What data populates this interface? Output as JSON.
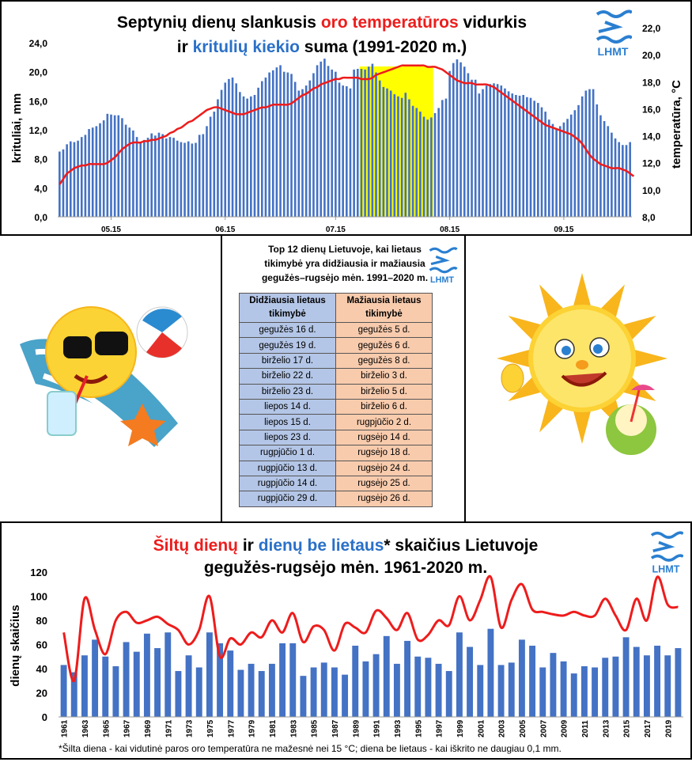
{
  "colors": {
    "red": "#ee1c1c",
    "blue": "#4472c4",
    "highlight": "#ffff00",
    "lhmt": "#2a7fd0",
    "col1": "#b4c6e7",
    "col2": "#f8cbad"
  },
  "logo_text": "LHMT",
  "top": {
    "title_l1": [
      "Septynių dienų slankusis ",
      "oro temperatūros",
      " vidurkis"
    ],
    "title_l2": [
      "ir ",
      "kritulių kiekio",
      " suma (1991-2020 m.)"
    ],
    "ylabel_left": "krituliai, mm",
    "ylabel_right": "temperatūra, °C"
  },
  "middle": {
    "title": "Top 12 dienų Lietuvoje, kai lietaus tikimybė yra didžiausia ir mažiausia gegužės–rugsėjo mėn. 1991–2020 m.",
    "title_lines": [
      "Top 12 dienų Lietuvoje, kai lietaus",
      "tikimybė yra didžiausia ir mažiausia",
      "gegužės–rugsėjo mėn. 1991–2020 m."
    ],
    "headers": [
      "Didžiausia lietaus tikimybė",
      "Mažiausia lietaus tikimybė"
    ],
    "max_days": [
      "gegužės 16 d.",
      "gegužės 19 d.",
      "birželio 17 d.",
      "birželio 22 d.",
      "birželio 23 d.",
      "liepos 14 d.",
      "liepos 15 d.",
      "liepos 23 d.",
      "rugpjūčio 1 d.",
      "rugpjūčio 13 d.",
      "rugpjūčio 14 d.",
      "rugpjūčio 29 d."
    ],
    "min_days": [
      "gegužės 5 d.",
      "gegužės 6 d.",
      "gegužės 8 d.",
      "birželio 3 d.",
      "birželio 5 d.",
      "birželio 6 d.",
      "rugpjūčio 2 d.",
      "rugsėjo 14 d.",
      "rugsėjo 18 d.",
      "rugsėjo 24 d.",
      "rugsėjo 25 d.",
      "rugsėjo 26 d."
    ]
  },
  "bottom": {
    "title_l1": [
      "Šiltų dienų",
      " ir ",
      "dienų be lietaus",
      "* skaičius Lietuvoje"
    ],
    "title_l2": "gegužės-rugsėjo mėn. 1961-2020 m.",
    "ylabel": "dienų skaičius",
    "footnote": "*Šilta diena - kai vidutinė paros oro temperatūra ne mažesnė nei 15 °C; diena be lietaus - kai iškrito ne daugiau 0,1 mm."
  },
  "chart_data": [
    {
      "type": "bar+line",
      "title": "Septynių dienų slankusis oro temperatūros vidurkis ir kritulių kiekio suma (1991-2020 m.)",
      "x_ticks": [
        "05.15",
        "06.15",
        "07.15",
        "08.15",
        "09.15"
      ],
      "x_tick_day_index": [
        14,
        45,
        75,
        106,
        137
      ],
      "left_axis": {
        "label": "krituliai, mm",
        "ylim": [
          0,
          24
        ],
        "ticks": [
          "0,0",
          "4,0",
          "8,0",
          "12,0",
          "16,0",
          "20,0",
          "24,0"
        ]
      },
      "right_axis": {
        "label": "temperatūra, °C",
        "ylim": [
          8,
          22
        ],
        "ticks": [
          "8,0",
          "10,0",
          "12,0",
          "14,0",
          "16,0",
          "18,0",
          "20,0",
          "22,0"
        ]
      },
      "highlight_days": [
        82,
        101
      ],
      "precip_mm": [
        9.0,
        9.3,
        10.0,
        10.4,
        10.3,
        10.5,
        11.0,
        11.3,
        12.1,
        12.3,
        12.5,
        12.9,
        13.3,
        14.2,
        14.1,
        14.0,
        14.0,
        13.6,
        12.7,
        12.3,
        11.9,
        11.0,
        10.2,
        10.6,
        10.9,
        11.5,
        11.2,
        11.6,
        11.4,
        10.8,
        11.0,
        10.9,
        10.5,
        10.3,
        10.2,
        10.4,
        10.1,
        10.2,
        11.3,
        11.4,
        12.5,
        13.8,
        14.5,
        16.2,
        17.5,
        18.5,
        19.0,
        19.2,
        18.4,
        17.2,
        16.6,
        16.3,
        16.6,
        16.8,
        17.8,
        18.7,
        19.2,
        19.9,
        20.2,
        20.6,
        20.9,
        20.0,
        19.9,
        19.7,
        18.6,
        17.4,
        17.6,
        18.1,
        18.8,
        19.8,
        20.9,
        21.4,
        21.8,
        20.8,
        20.3,
        20.0,
        18.5,
        18.1,
        18.0,
        17.7,
        20.3,
        20.4,
        20.4,
        20.3,
        20.7,
        21.1,
        19.9,
        18.8,
        17.9,
        17.7,
        17.4,
        16.9,
        16.6,
        16.4,
        17.1,
        16.2,
        15.3,
        15.0,
        14.5,
        13.8,
        13.4,
        13.7,
        14.3,
        15.0,
        16.1,
        16.3,
        20.1,
        21.2,
        21.7,
        21.3,
        20.7,
        19.8,
        18.9,
        18.9,
        17.0,
        17.6,
        18.1,
        18.3,
        18.4,
        18.3,
        18.1,
        17.7,
        17.3,
        17.0,
        16.8,
        16.7,
        16.8,
        16.5,
        16.4,
        16.0,
        15.7,
        15.1,
        14.5,
        13.4,
        12.8,
        12.2,
        12.5,
        13.0,
        13.5,
        14.1,
        14.7,
        15.4,
        16.6,
        17.4,
        17.6,
        17.6,
        15.5,
        14.0,
        13.2,
        12.5,
        11.6,
        10.8,
        10.3,
        9.9,
        9.9,
        10.3
      ],
      "temp_c": [
        10.4,
        10.8,
        11.2,
        11.4,
        11.6,
        11.7,
        11.8,
        11.8,
        11.9,
        11.9,
        11.9,
        11.9,
        11.9,
        12.0,
        12.2,
        12.4,
        12.7,
        13.0,
        13.2,
        13.4,
        13.5,
        13.5,
        13.5,
        13.6,
        13.6,
        13.7,
        13.7,
        13.8,
        13.9,
        14.0,
        14.2,
        14.3,
        14.5,
        14.6,
        14.8,
        15.0,
        15.1,
        15.3,
        15.5,
        15.7,
        15.9,
        16.0,
        16.1,
        16.1,
        16.0,
        15.9,
        15.8,
        15.7,
        15.6,
        15.6,
        15.6,
        15.7,
        15.8,
        15.9,
        16.0,
        16.1,
        16.1,
        16.2,
        16.3,
        16.3,
        16.3,
        16.3,
        16.3,
        16.4,
        16.6,
        16.8,
        17.0,
        17.1,
        17.3,
        17.5,
        17.6,
        17.8,
        17.9,
        18.0,
        18.1,
        18.2,
        18.2,
        18.3,
        18.3,
        18.3,
        18.3,
        18.3,
        18.2,
        18.2,
        18.2,
        18.3,
        18.5,
        18.6,
        18.7,
        18.8,
        18.9,
        19.0,
        19.1,
        19.2,
        19.2,
        19.2,
        19.2,
        19.2,
        19.2,
        19.2,
        19.1,
        19.1,
        19.1,
        19.0,
        18.9,
        18.7,
        18.5,
        18.3,
        18.1,
        18.0,
        17.9,
        17.9,
        17.9,
        17.8,
        17.8,
        17.8,
        17.8,
        17.7,
        17.6,
        17.4,
        17.2,
        17.0,
        16.8,
        16.6,
        16.4,
        16.2,
        16.0,
        15.8,
        15.6,
        15.4,
        15.2,
        15.0,
        14.8,
        14.7,
        14.6,
        14.5,
        14.4,
        14.3,
        14.2,
        14.1,
        13.9,
        13.7,
        13.4,
        13.0,
        12.6,
        12.3,
        12.1,
        11.9,
        11.8,
        11.7,
        11.6,
        11.6,
        11.6,
        11.5,
        11.4,
        11.2,
        11.0
      ]
    },
    {
      "type": "bar+line",
      "title": "Šiltų dienų ir dienų be lietaus* skaičius Lietuvoje gegužės-rugsėjo mėn. 1961-2020 m.",
      "ylabel": "dienų skaičius",
      "ylim": [
        0,
        120
      ],
      "y_ticks": [
        0,
        20,
        40,
        60,
        80,
        100,
        120
      ],
      "x_years_start": 1961,
      "x_tick_labels": [
        "1961",
        "1963",
        "1965",
        "1967",
        "1969",
        "1971",
        "1973",
        "1975",
        "1977",
        "1979",
        "1981",
        "1983",
        "1985",
        "1987",
        "1989",
        "1991",
        "1993",
        "1995",
        "1997",
        "1999",
        "2001",
        "2003",
        "2005",
        "2007",
        "2009",
        "2011",
        "2013",
        "2015",
        "2017",
        "2019"
      ],
      "series": [
        {
          "name": "dienų be lietaus",
          "type": "bar",
          "values": [
            43,
            37,
            51,
            64,
            50,
            42,
            62,
            54,
            69,
            57,
            70,
            38,
            51,
            41,
            70,
            61,
            55,
            39,
            44,
            38,
            44,
            61,
            61,
            34,
            41,
            45,
            41,
            35,
            59,
            46,
            52,
            67,
            44,
            63,
            50,
            49,
            44,
            38,
            70,
            58,
            43,
            73,
            43,
            45,
            64,
            59,
            41,
            53,
            46,
            36,
            42,
            41,
            49,
            50,
            66,
            58,
            51,
            59,
            51,
            57
          ]
        },
        {
          "name": "šiltų dienų",
          "type": "line",
          "values": [
            70,
            30,
            98,
            72,
            52,
            80,
            87,
            78,
            80,
            83,
            77,
            72,
            60,
            72,
            100,
            50,
            65,
            60,
            70,
            66,
            80,
            70,
            86,
            62,
            75,
            72,
            55,
            77,
            74,
            70,
            88,
            82,
            72,
            86,
            64,
            68,
            80,
            76,
            100,
            80,
            97,
            116,
            74,
            97,
            110,
            89,
            87,
            85,
            84,
            87,
            84,
            84,
            98,
            84,
            72,
            98,
            80,
            116,
            93,
            91
          ]
        }
      ]
    }
  ]
}
